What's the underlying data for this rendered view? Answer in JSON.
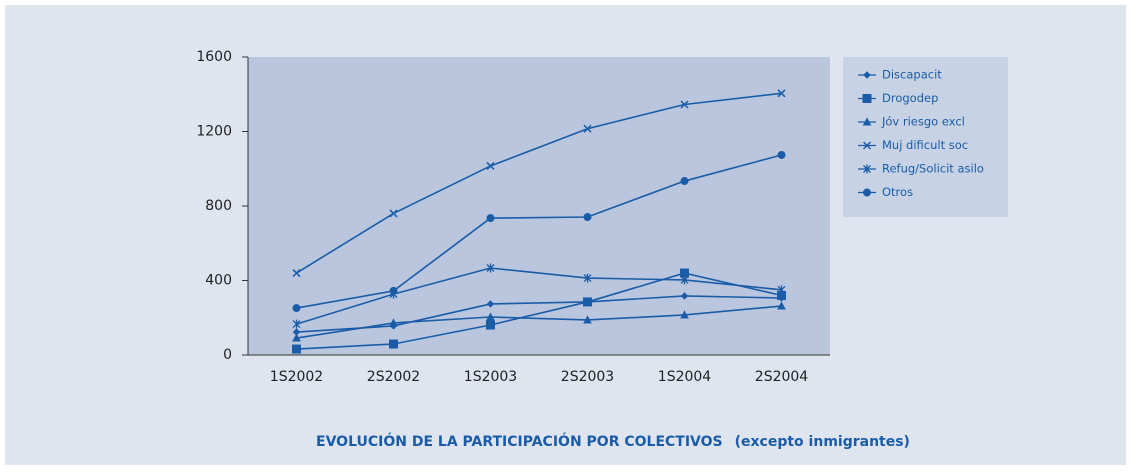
{
  "chart_data": {
    "type": "line",
    "title": "EVOLUCIÓN DE LA PARTICIPACIÓN POR COLECTIVOS",
    "subtitle": "(excepto inmigrantes)",
    "categories": [
      "1S2002",
      "2S2002",
      "1S2003",
      "2S2003",
      "1S2004",
      "2S2004"
    ],
    "series": [
      {
        "name": "Discapacit",
        "color": "#1a5ca8",
        "marker": "diamond",
        "values": [
          123,
          156,
          274,
          285,
          317,
          306
        ]
      },
      {
        "name": "Drogodep",
        "color": "#1a5ca8",
        "marker": "square",
        "values": [
          32,
          59,
          161,
          285,
          440,
          320
        ]
      },
      {
        "name": "Jóv riesgo excl",
        "color": "#1a5ca8",
        "marker": "triangle",
        "values": [
          91,
          172,
          204,
          188,
          215,
          263
        ]
      },
      {
        "name": "Muj dificult soc",
        "color": "#1a5ca8",
        "marker": "x",
        "values": [
          440,
          760,
          1015,
          1215,
          1345,
          1405
        ]
      },
      {
        "name": "Refug/Solicit asilo",
        "color": "#1a5ca8",
        "marker": "star",
        "values": [
          166,
          327,
          467,
          413,
          403,
          350
        ]
      },
      {
        "name": "Otros",
        "color": "#1a5ca8",
        "marker": "circle",
        "values": [
          252,
          344,
          735,
          741,
          934,
          1074
        ]
      }
    ],
    "ylim": [
      0,
      1600
    ],
    "yticks": [
      0,
      400,
      800,
      1200,
      1600
    ],
    "legend": "right"
  }
}
